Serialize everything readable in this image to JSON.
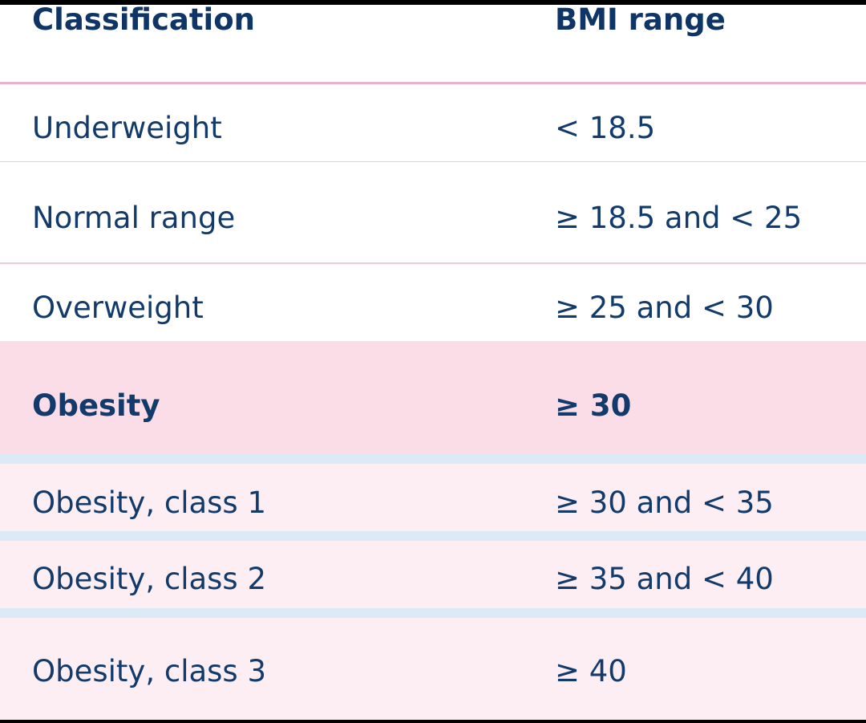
{
  "table": {
    "header": [
      "Classification",
      "BMI range"
    ],
    "rows": [
      [
        "Underweight",
        "< 18.5"
      ],
      [
        "Normal range",
        "≥ 18.5 and < 25"
      ],
      [
        "Overweight",
        "≥ 25 and < 30"
      ],
      [
        "Obesity",
        "≥ 30"
      ],
      [
        "Obesity, class 1",
        "≥ 30 and < 35"
      ],
      [
        "Obesity, class 2",
        "≥ 35 and < 40"
      ],
      [
        "Obesity, class 3",
        "≥ 40"
      ]
    ]
  }
}
